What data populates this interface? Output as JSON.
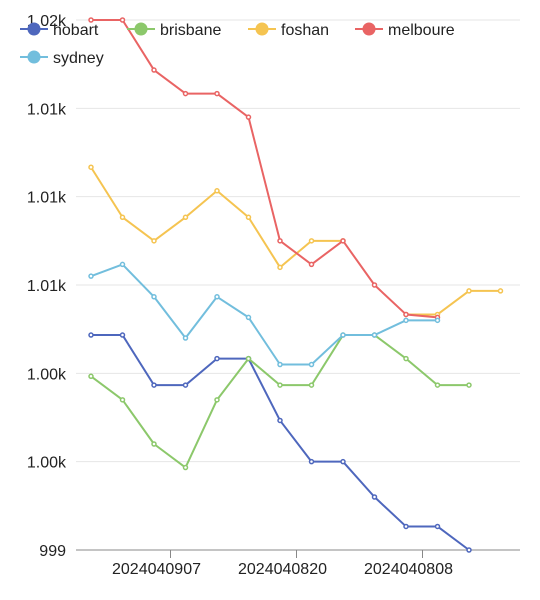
{
  "chart_data": {
    "type": "line",
    "title": "",
    "xlabel": "",
    "ylabel": "",
    "x_tick_labels": [
      "2024040907",
      "2024040820",
      "2024040808"
    ],
    "y_tick_labels": [
      "999",
      "1.00k",
      "1.00k",
      "1.01k",
      "1.01k",
      "1.01k",
      "1.02k"
    ],
    "ylim": [
      999,
      1017
    ],
    "legend_position": "top",
    "grid": true,
    "n_points": 14,
    "series": [
      {
        "name": "hobart",
        "color": "#4e67bd",
        "values": [
          1006.3,
          1006.3,
          1004.6,
          1004.6,
          1005.5,
          1005.5,
          1003.4,
          1002.0,
          1002.0,
          1000.8,
          999.8,
          999.8,
          999.0,
          null
        ]
      },
      {
        "name": "brisbane",
        "color": "#8cc86b",
        "values": [
          1004.9,
          1004.1,
          1002.6,
          1001.8,
          1004.1,
          1005.5,
          1004.6,
          1004.6,
          1006.3,
          1006.3,
          1005.5,
          1004.6,
          1004.6,
          null
        ]
      },
      {
        "name": "foshan",
        "color": "#f5c451",
        "values": [
          1012.0,
          1010.3,
          1009.5,
          1010.3,
          1011.2,
          1010.3,
          1008.6,
          1009.5,
          1009.5,
          null,
          1007.0,
          1007.0,
          1007.8,
          1007.8
        ]
      },
      {
        "name": "melboure",
        "color": "#e96464",
        "values": [
          1017.0,
          1017.0,
          1015.3,
          1014.5,
          1014.5,
          1013.7,
          1009.5,
          1008.7,
          1009.5,
          1008.0,
          1007.0,
          1006.9,
          null,
          null
        ]
      },
      {
        "name": "sydney",
        "color": "#72bedd",
        "values": [
          1008.3,
          1008.7,
          1007.6,
          1006.2,
          1007.6,
          1006.9,
          1005.3,
          1005.3,
          1006.3,
          1006.3,
          1006.8,
          1006.8,
          null,
          null
        ]
      }
    ]
  }
}
